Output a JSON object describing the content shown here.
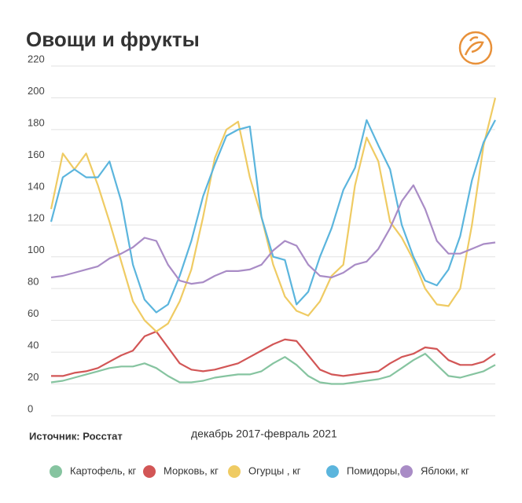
{
  "chart_data": {
    "type": "line",
    "title": "Овощи и фрукты",
    "source": "Источник: Росстат",
    "x_label": "декабрь 2017-февраль 2021",
    "categories": [
      null,
      null,
      null,
      null,
      null,
      null,
      null,
      null,
      null,
      null,
      null,
      null,
      null,
      null,
      null,
      null,
      null,
      null,
      null,
      null,
      null,
      null,
      null,
      null,
      null,
      null,
      null,
      null,
      null,
      null,
      null,
      null,
      null,
      null,
      null,
      null,
      null,
      null,
      null
    ],
    "ylim": [
      0,
      220
    ],
    "yticks": [
      0,
      20,
      40,
      60,
      80,
      100,
      120,
      140,
      160,
      180,
      200,
      220
    ],
    "grid": true,
    "legend": "bottom",
    "series": [
      {
        "name": "Картофель, кг",
        "color": "#86c4a0",
        "values": [
          21,
          22,
          24,
          26,
          28,
          30,
          31,
          31,
          33,
          30,
          25,
          21,
          21,
          22,
          24,
          25,
          26,
          26,
          28,
          33,
          37,
          32,
          25,
          21,
          20,
          20,
          21,
          22,
          23,
          25,
          30,
          35,
          39,
          32,
          25,
          24,
          26,
          28,
          32
        ]
      },
      {
        "name": "Морковь, кг",
        "color": "#d25656",
        "values": [
          25,
          25,
          27,
          28,
          30,
          34,
          38,
          41,
          50,
          53,
          43,
          33,
          29,
          28,
          29,
          31,
          33,
          37,
          41,
          45,
          48,
          47,
          38,
          29,
          26,
          25,
          26,
          27,
          28,
          33,
          37,
          39,
          43,
          42,
          35,
          32,
          32,
          34,
          39
        ]
      },
      {
        "name": "Огурцы , кг",
        "color": "#efcb63",
        "values": [
          130,
          165,
          155,
          165,
          145,
          122,
          97,
          72,
          60,
          53,
          58,
          72,
          92,
          125,
          162,
          180,
          185,
          150,
          125,
          95,
          75,
          66,
          63,
          72,
          88,
          95,
          145,
          175,
          160,
          122,
          112,
          98,
          80,
          70,
          69,
          80,
          120,
          170,
          200
        ]
      },
      {
        "name": "Помидоры, кг",
        "color": "#5bb5dd",
        "values": [
          122,
          150,
          155,
          150,
          150,
          160,
          135,
          95,
          73,
          65,
          70,
          88,
          110,
          138,
          158,
          176,
          180,
          182,
          125,
          100,
          98,
          70,
          78,
          100,
          118,
          142,
          156,
          186,
          170,
          155,
          120,
          100,
          85,
          82,
          92,
          113,
          148,
          172,
          186
        ]
      },
      {
        "name": "Яблоки, кг",
        "color": "#a98cc6",
        "values": [
          87,
          88,
          90,
          92,
          94,
          99,
          102,
          106,
          112,
          110,
          95,
          85,
          83,
          84,
          88,
          91,
          91,
          92,
          95,
          104,
          110,
          107,
          95,
          88,
          87,
          90,
          95,
          97,
          105,
          118,
          135,
          145,
          130,
          110,
          102,
          102,
          105,
          108,
          109
        ]
      }
    ]
  }
}
